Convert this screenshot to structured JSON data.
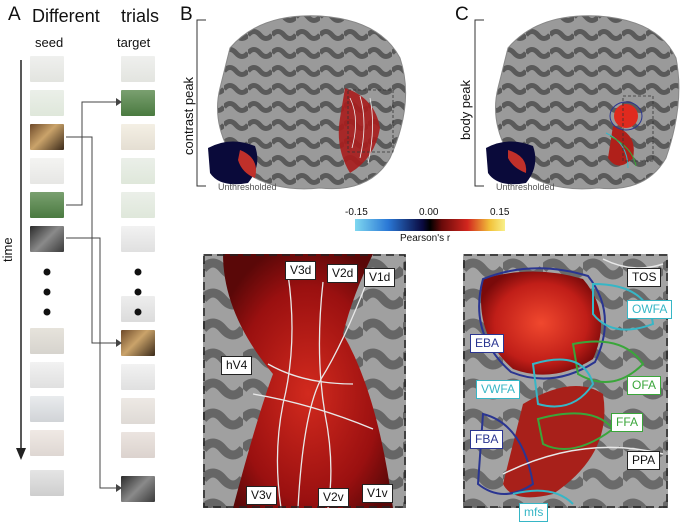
{
  "panel_a": {
    "letter": "A",
    "header_left": "Different",
    "header_right": "trials",
    "col_seed": "seed",
    "col_target": "target",
    "axis_label": "time"
  },
  "panel_b": {
    "letter": "B",
    "row_label": "contrast peak",
    "unthresholded": "Unthresholded",
    "rois": [
      "V3d",
      "V2d",
      "V1d",
      "hV4",
      "V3v",
      "V2v",
      "V1v"
    ]
  },
  "panel_c": {
    "letter": "C",
    "row_label": "body peak",
    "unthresholded": "Unthresholded",
    "rois": [
      {
        "name": "TOS",
        "color": "#111111"
      },
      {
        "name": "OWFA",
        "color": "#36b6c6"
      },
      {
        "name": "EBA",
        "color": "#2a3591"
      },
      {
        "name": "OFA",
        "color": "#3aa63a"
      },
      {
        "name": "VWFA",
        "color": "#36b6c6"
      },
      {
        "name": "FFA",
        "color": "#3aa63a"
      },
      {
        "name": "FBA",
        "color": "#2a3591"
      },
      {
        "name": "PPA",
        "color": "#111111"
      },
      {
        "name": "mfs",
        "color": "#36b6c6"
      }
    ]
  },
  "colorbar": {
    "min_label": "-0.15",
    "mid_label": "0.00",
    "max_label": "0.15",
    "title": "Pearson's r"
  }
}
